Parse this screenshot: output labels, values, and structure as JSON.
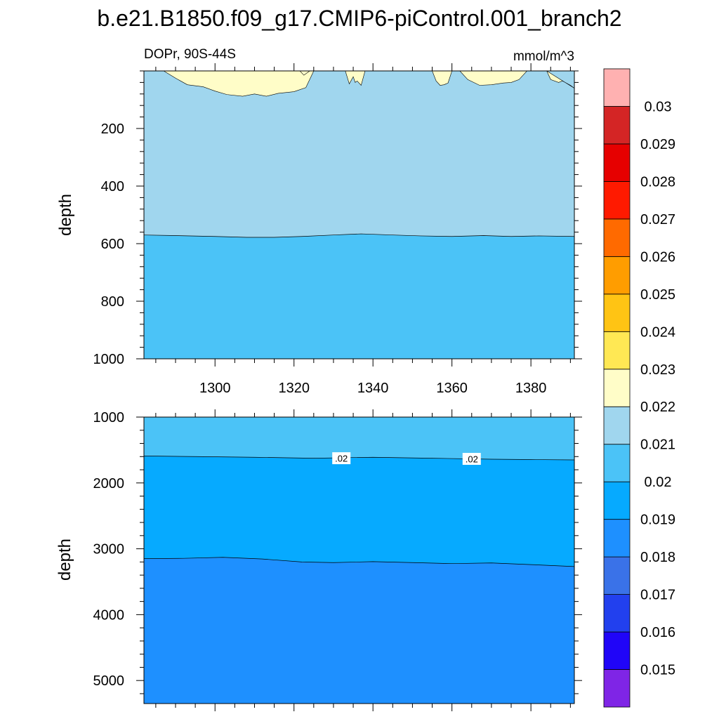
{
  "title": "b.e21.B1850.f09_g17.CMIP6-piControl.001_branch2",
  "colors": {
    "c0": "#7f25e6",
    "c1": "#2005f8",
    "c2": "#2240ee",
    "c3": "#3a72e8",
    "c4": "#1e90ff",
    "c5": "#06aaff",
    "c6": "#4bc3f7",
    "c7": "#a0d6ee",
    "c8": "#fffdc8",
    "c9": "#ffe854",
    "c10": "#ffc414",
    "c11": "#ff9d00",
    "c12": "#ff6a00",
    "c13": "#ff1a00",
    "c14": "#e60000",
    "c15": "#d42525",
    "c16": "#ffb1b1"
  },
  "chart_data": [
    {
      "type": "contour",
      "name": "upper",
      "left_label": "DOPr, 90S-44S",
      "right_label": "mmol/m^3",
      "ylabel": "depth",
      "xlabel": "",
      "xlim": [
        1282,
        1391
      ],
      "ylim": [
        0,
        1000
      ],
      "x_ticks": [
        1300,
        1320,
        1340,
        1360,
        1380
      ],
      "y_ticks": [
        200,
        400,
        600,
        800,
        1000
      ],
      "fill_bands": [
        {
          "level_range": [
            0.02,
            0.021
          ],
          "color_key": "c6"
        },
        {
          "level_range": [
            0.021,
            0.022
          ],
          "color_key": "c7"
        },
        {
          "level_range": [
            0.022,
            0.023
          ],
          "color_key": "c8"
        }
      ],
      "contour_lines": [
        {
          "level": 0.021,
          "x": [
            1282,
            1290,
            1300,
            1308,
            1315,
            1322,
            1330,
            1337,
            1345,
            1352,
            1360,
            1368,
            1375,
            1382,
            1391
          ],
          "depth": [
            570,
            572,
            575,
            578,
            578,
            575,
            570,
            566,
            570,
            573,
            575,
            572,
            575,
            573,
            575
          ]
        }
      ],
      "surface_patches": [
        {
          "level": 0.022,
          "x": [
            1287,
            1290,
            1293,
            1297,
            1300,
            1303,
            1307,
            1310,
            1313,
            1316,
            1320,
            1323,
            1325
          ],
          "depth": [
            0,
            25,
            48,
            55,
            70,
            82,
            88,
            80,
            88,
            78,
            72,
            58,
            0
          ]
        },
        {
          "level": 0.022,
          "x": [
            1333,
            1334,
            1335,
            1335.5,
            1336,
            1337,
            1338
          ],
          "depth": [
            0,
            45,
            20,
            40,
            35,
            50,
            0
          ]
        },
        {
          "level": 0.022,
          "x": [
            1321.5,
            1322.5,
            1324
          ],
          "depth": [
            0,
            15,
            0
          ]
        },
        {
          "level": 0.022,
          "x": [
            1355,
            1356,
            1357,
            1358,
            1359,
            1360
          ],
          "depth": [
            0,
            35,
            50,
            48,
            42,
            0
          ]
        },
        {
          "level": 0.022,
          "x": [
            1362,
            1364,
            1367,
            1370,
            1373,
            1375,
            1377,
            1379
          ],
          "depth": [
            0,
            30,
            50,
            48,
            42,
            40,
            30,
            0
          ]
        },
        {
          "level": 0.022,
          "x": [
            1384,
            1385,
            1387,
            1388,
            1390,
            1391
          ],
          "depth": [
            0,
            30,
            40,
            35,
            50,
            60
          ]
        }
      ],
      "line_labels": []
    },
    {
      "type": "contour",
      "name": "lower",
      "left_label": "",
      "right_label": "",
      "ylabel": "depth",
      "xlabel": "",
      "xlim": [
        1282,
        1391
      ],
      "ylim": [
        1000,
        5350
      ],
      "x_ticks": [],
      "y_ticks": [
        1000,
        2000,
        3000,
        4000,
        5000
      ],
      "fill_bands": [
        {
          "level_range": [
            0.018,
            0.019
          ],
          "color_key": "c4"
        },
        {
          "level_range": [
            0.019,
            0.02
          ],
          "color_key": "c5"
        },
        {
          "level_range": [
            0.02,
            0.021
          ],
          "color_key": "c6"
        }
      ],
      "contour_lines": [
        {
          "level": 0.02,
          "x": [
            1282,
            1295,
            1310,
            1325,
            1340,
            1355,
            1370,
            1380,
            1391
          ],
          "depth": [
            1590,
            1600,
            1610,
            1625,
            1610,
            1625,
            1640,
            1645,
            1650
          ]
        },
        {
          "level": 0.019,
          "x": [
            1282,
            1292,
            1302,
            1312,
            1322,
            1330,
            1340,
            1350,
            1360,
            1370,
            1380,
            1391
          ],
          "depth": [
            3150,
            3145,
            3130,
            3155,
            3200,
            3210,
            3195,
            3210,
            3225,
            3215,
            3240,
            3270
          ]
        }
      ],
      "line_labels": [
        {
          "text": ".02",
          "x": 1332,
          "depth": 1630
        },
        {
          "text": ".02",
          "x": 1365,
          "depth": 1640
        }
      ]
    },
    {
      "type": "colorbar",
      "color_keys": [
        "c0",
        "c1",
        "c2",
        "c3",
        "c4",
        "c5",
        "c6",
        "c7",
        "c8",
        "c9",
        "c10",
        "c11",
        "c12",
        "c13",
        "c14",
        "c15",
        "c16"
      ],
      "labels": [
        "0.015",
        "0.016",
        "0.017",
        "0.018",
        "0.019",
        "0.02",
        "0.021",
        "0.022",
        "0.023",
        "0.024",
        "0.025",
        "0.026",
        "0.027",
        "0.028",
        "0.029",
        "0.03"
      ]
    }
  ]
}
